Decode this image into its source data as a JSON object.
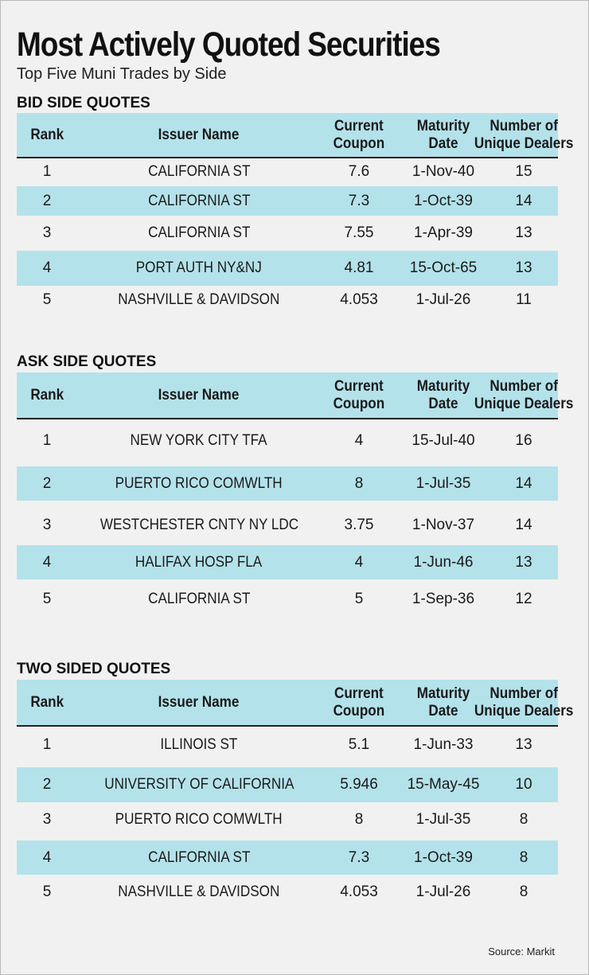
{
  "title": "Most Actively Quoted Securities",
  "subtitle": "Top Five Muni Trades by Side",
  "source": "Source: Markit",
  "columns": {
    "rank": "Rank",
    "issuer": "Issuer Name",
    "coupon_l1": "Current",
    "coupon_l2": "Coupon",
    "maturity_l1": "Maturity",
    "maturity_l2": "Date",
    "dealers_l1": "Number of",
    "dealers_l2": "Unique Dealers"
  },
  "chart_data": {
    "type": "table",
    "title": "Most Actively Quoted Securities",
    "subtitle": "Top Five Muni Trades by Side",
    "columns": [
      "Rank",
      "Issuer Name",
      "Current Coupon",
      "Maturity Date",
      "Number of Unique Dealers"
    ],
    "tables": [
      {
        "name": "BID SIDE QUOTES",
        "rows": [
          {
            "rank": "1",
            "issuer": "CALIFORNIA ST",
            "coupon": "7.6",
            "maturity": "1-Nov-40",
            "dealers": "15"
          },
          {
            "rank": "2",
            "issuer": "CALIFORNIA ST",
            "coupon": "7.3",
            "maturity": "1-Oct-39",
            "dealers": "14"
          },
          {
            "rank": "3",
            "issuer": "CALIFORNIA ST",
            "coupon": "7.55",
            "maturity": "1-Apr-39",
            "dealers": "13"
          },
          {
            "rank": "4",
            "issuer": "PORT AUTH NY&NJ",
            "coupon": "4.81",
            "maturity": "15-Oct-65",
            "dealers": "13"
          },
          {
            "rank": "5",
            "issuer": "NASHVILLE & DAVIDSON",
            "coupon": "4.053",
            "maturity": "1-Jul-26",
            "dealers": "11"
          }
        ]
      },
      {
        "name": "ASK SIDE QUOTES",
        "rows": [
          {
            "rank": "1",
            "issuer": "NEW YORK CITY TFA",
            "coupon": "4",
            "maturity": "15-Jul-40",
            "dealers": "16"
          },
          {
            "rank": "2",
            "issuer": "PUERTO RICO COMWLTH",
            "coupon": "8",
            "maturity": "1-Jul-35",
            "dealers": "14"
          },
          {
            "rank": "3",
            "issuer": "WESTCHESTER CNTY NY LDC",
            "coupon": "3.75",
            "maturity": "1-Nov-37",
            "dealers": "14"
          },
          {
            "rank": "4",
            "issuer": "HALIFAX HOSP FLA",
            "coupon": "4",
            "maturity": "1-Jun-46",
            "dealers": "13"
          },
          {
            "rank": "5",
            "issuer": "CALIFORNIA ST",
            "coupon": "5",
            "maturity": "1-Sep-36",
            "dealers": "12"
          }
        ]
      },
      {
        "name": "TWO SIDED QUOTES",
        "rows": [
          {
            "rank": "1",
            "issuer": "ILLINOIS ST",
            "coupon": "5.1",
            "maturity": "1-Jun-33",
            "dealers": "13"
          },
          {
            "rank": "2",
            "issuer": "UNIVERSITY OF CALIFORNIA",
            "coupon": "5.946",
            "maturity": "15-May-45",
            "dealers": "10"
          },
          {
            "rank": "3",
            "issuer": "PUERTO RICO COMWLTH",
            "coupon": "8",
            "maturity": "1-Jul-35",
            "dealers": "8"
          },
          {
            "rank": "4",
            "issuer": "CALIFORNIA ST",
            "coupon": "7.3",
            "maturity": "1-Oct-39",
            "dealers": "8"
          },
          {
            "rank": "5",
            "issuer": "NASHVILLE & DAVIDSON",
            "coupon": "4.053",
            "maturity": "1-Jul-26",
            "dealers": "8"
          }
        ]
      }
    ]
  }
}
